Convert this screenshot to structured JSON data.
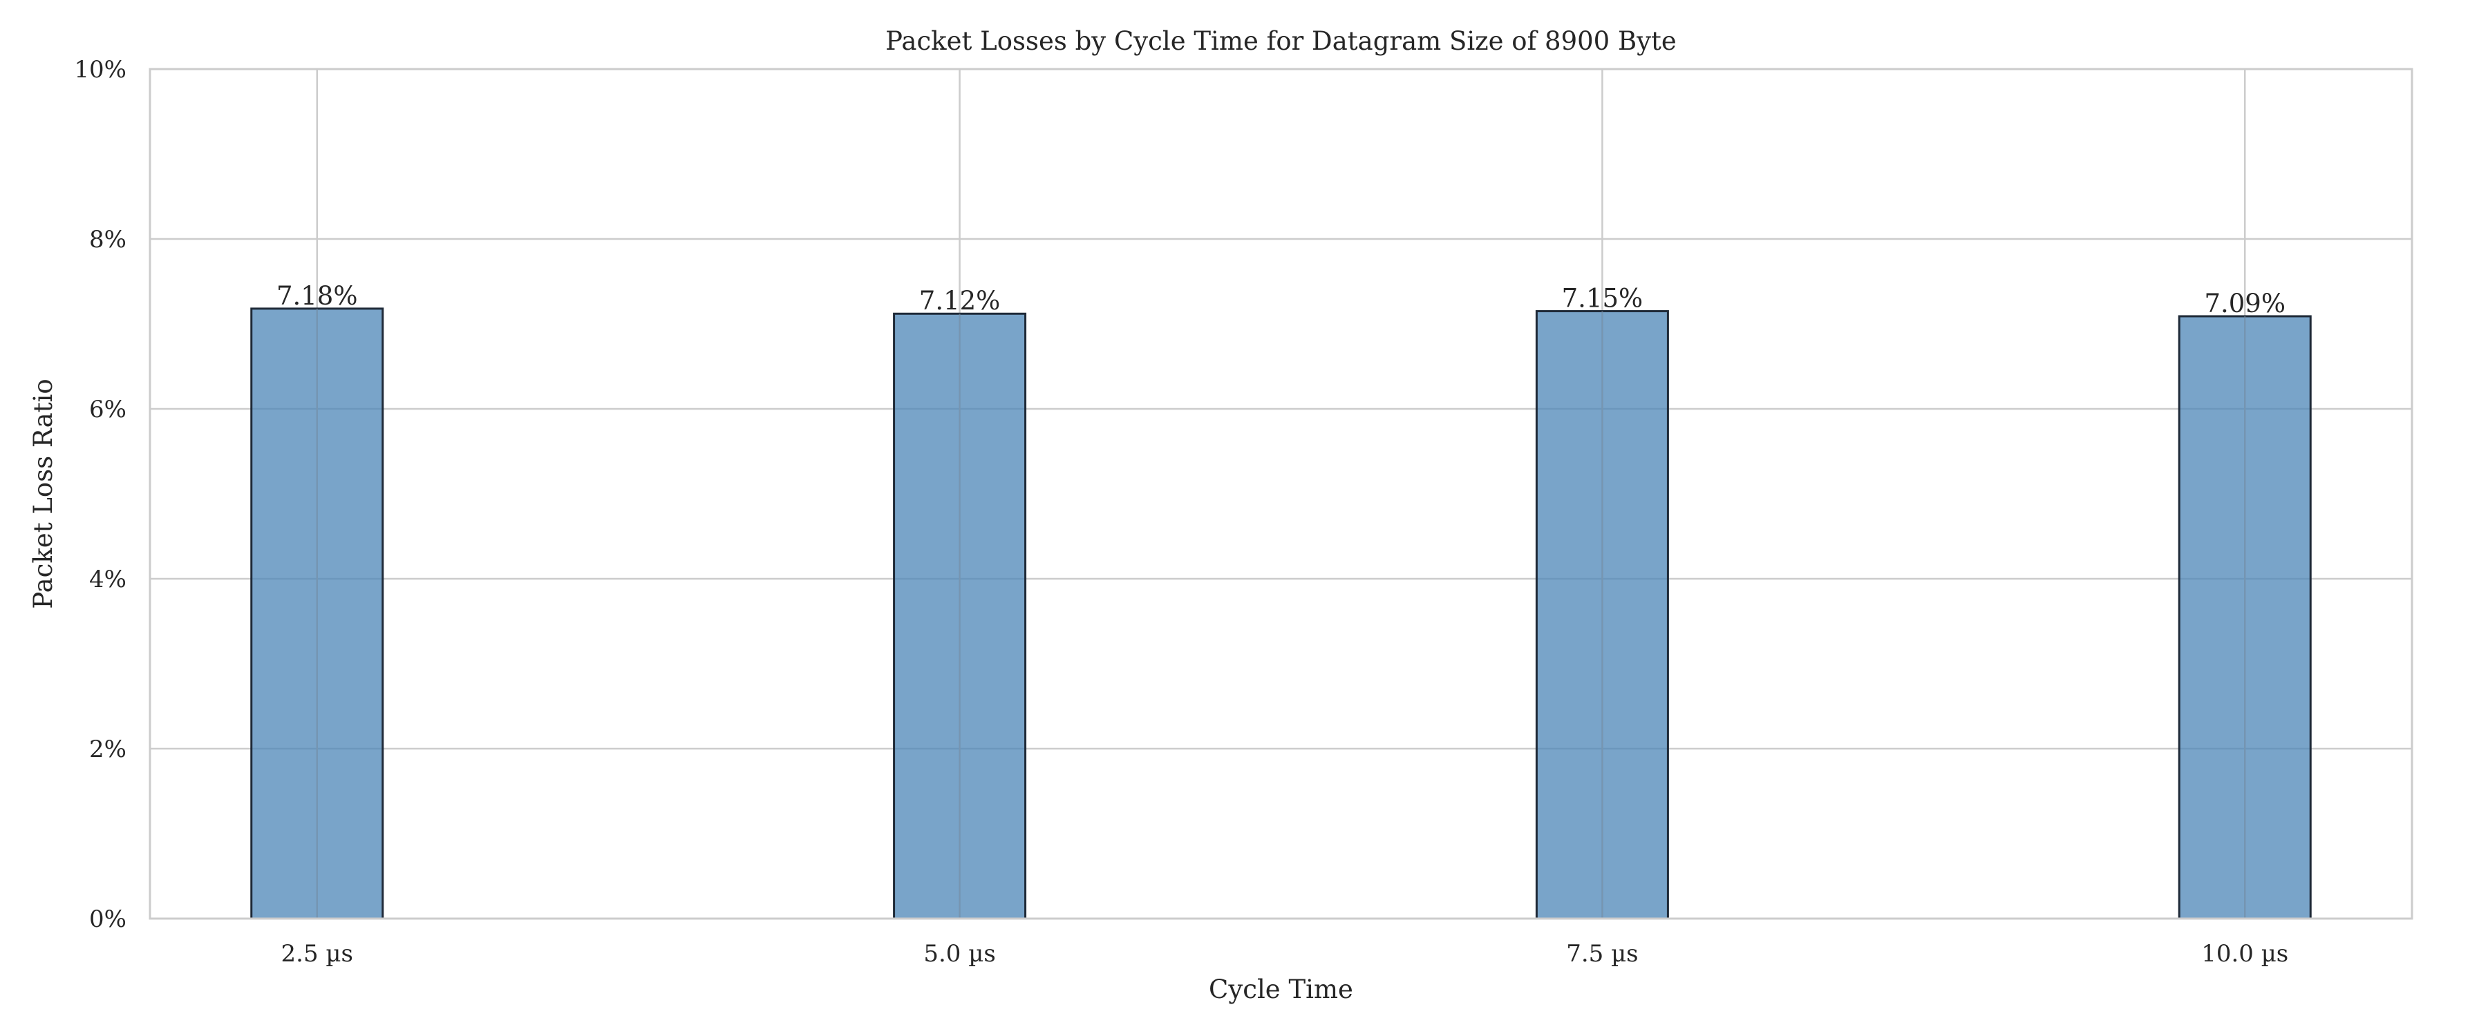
{
  "chart_data": {
    "type": "bar",
    "title": "Packet Losses by Cycle Time for Datagram Size of 8900 Byte",
    "xlabel": "Cycle Time",
    "ylabel": "Packet Loss Ratio",
    "categories": [
      "2.5 µs",
      "5.0 µs",
      "7.5 µs",
      "10.0 µs"
    ],
    "values": [
      7.18,
      7.12,
      7.15,
      7.09
    ],
    "value_labels": [
      "7.18%",
      "7.12%",
      "7.15%",
      "7.09%"
    ],
    "value_unit": "%",
    "ylim": [
      0,
      10
    ],
    "yticks": [
      0,
      2,
      4,
      6,
      8,
      10
    ],
    "ytick_labels": [
      "0%",
      "2%",
      "4%",
      "6%",
      "8%",
      "10%"
    ],
    "grid": true,
    "legend": "none",
    "colors": {
      "bar_fill": "#4c85b7",
      "bar_edge": "#1f2a38",
      "grid": "#cccccc",
      "frame": "#cccccc",
      "text": "#262626"
    }
  }
}
